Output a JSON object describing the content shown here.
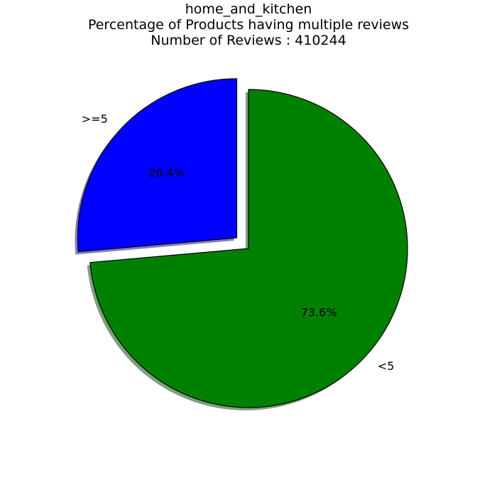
{
  "chart_data": {
    "type": "pie",
    "title": "home_and_kitchen",
    "subtitle": "Percentage of Products having multiple reviews",
    "note": "Number of Reviews : 410244",
    "slices": [
      {
        "label": ">=5",
        "value": 26.4,
        "pct_label": "26.4%",
        "color": "#0000ff",
        "exploded": true
      },
      {
        "label": "<5",
        "value": 73.6,
        "pct_label": "73.6%",
        "color": "#008000",
        "exploded": false
      }
    ],
    "start_angle_deg": 90,
    "direction": "counterclockwise",
    "shadow": true,
    "edge_color": "#000000"
  }
}
